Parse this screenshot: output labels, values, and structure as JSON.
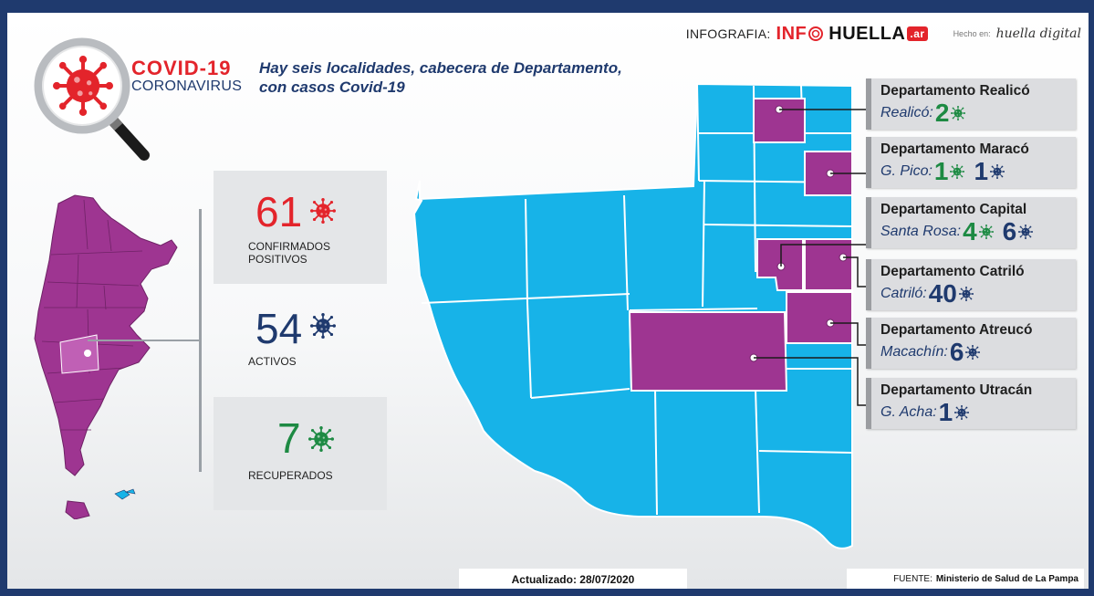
{
  "header": {
    "infografia_label": "INFOGRAFIA:",
    "logo_info": "INF",
    "logo_huella": "HUELLA",
    "logo_ar": ".ar",
    "hecho_en_label": "Hecho en:",
    "huella_digital_logo": "huella digital"
  },
  "title": {
    "covid": "COVID-19",
    "coronavirus": "CORONAVIRUS",
    "headline_line1": "Hay seis localidades, cabecera de Departamento,",
    "headline_line2": "con casos Covid-19"
  },
  "stats": [
    {
      "value": "61",
      "label_line1": "CONFIRMADOS",
      "label_line2": "POSITIVOS",
      "color": "#e3242b"
    },
    {
      "value": "54",
      "label_line1": "ACTIVOS",
      "label_line2": "",
      "color": "#1f3a6e"
    },
    {
      "value": "7",
      "label_line1": "RECUPERADOS",
      "label_line2": "",
      "color": "#1d8a43"
    }
  ],
  "departments": [
    {
      "name": "Departamento Realicó",
      "locality": "Realicó:",
      "recovered": "2",
      "active": ""
    },
    {
      "name": "Departamento Maracó",
      "locality": "G. Pico:",
      "recovered": "1",
      "active": "1"
    },
    {
      "name": "Departamento Capital",
      "locality": "Santa Rosa:",
      "recovered": "4",
      "active": "6"
    },
    {
      "name": "Departamento Catriló",
      "locality": "Catriló:",
      "recovered": "",
      "active": "40"
    },
    {
      "name": "Departamento Atreucó",
      "locality": "Macachín:",
      "recovered": "",
      "active": "6"
    },
    {
      "name": "Departamento Utracán",
      "locality": "G. Acha:",
      "recovered": "",
      "active": "1"
    }
  ],
  "footer": {
    "updated": "Actualizado: 28/07/2020",
    "source_label": "FUENTE:",
    "source_value": "Ministerio de Salud de La Pampa"
  },
  "colors": {
    "affected": "#9e3591",
    "unaffected": "#17b3e8",
    "confirmed": "#e3242b",
    "active": "#1f3a6e",
    "recovered": "#1d8a43"
  },
  "icons": {
    "magnifier": "magnifying-glass-icon",
    "virus": "virus-icon"
  }
}
